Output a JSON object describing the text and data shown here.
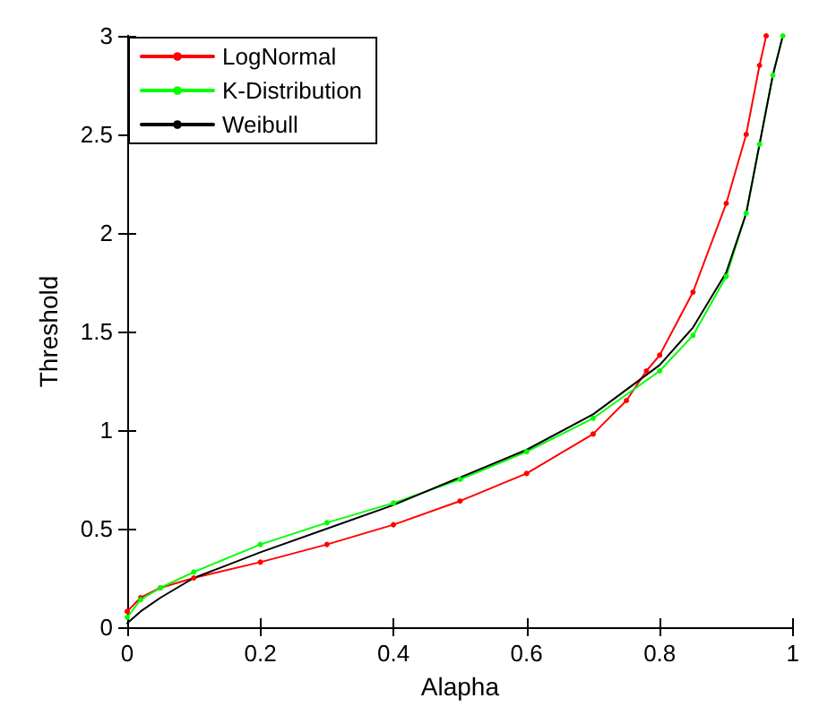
{
  "chart_data": {
    "type": "line",
    "xlabel": "Alapha",
    "ylabel": "Threshold",
    "xlim": [
      0,
      1
    ],
    "xticks": [
      0,
      0.2,
      0.4,
      0.6,
      0.8,
      1
    ],
    "ylim": [
      0,
      3
    ],
    "yticks": [
      0,
      0.5,
      1,
      1.5,
      2,
      2.5,
      3
    ],
    "legend": "top left",
    "grid": false,
    "series": [
      {
        "name": "LogNormal",
        "color": "#ff0000",
        "marker": "circle",
        "x": [
          0,
          0.02,
          0.05,
          0.1,
          0.2,
          0.3,
          0.4,
          0.5,
          0.6,
          0.7,
          0.75,
          0.78,
          0.8,
          0.85,
          0.9,
          0.93,
          0.95,
          0.96
        ],
        "values": [
          0.08,
          0.15,
          0.2,
          0.25,
          0.33,
          0.42,
          0.52,
          0.64,
          0.78,
          0.98,
          1.15,
          1.3,
          1.38,
          1.7,
          2.15,
          2.5,
          2.85,
          3.0
        ]
      },
      {
        "name": "K-Distribution",
        "color": "#00ff00",
        "marker": "circle",
        "x": [
          0,
          0.02,
          0.05,
          0.1,
          0.2,
          0.3,
          0.4,
          0.5,
          0.6,
          0.7,
          0.8,
          0.85,
          0.9,
          0.93,
          0.95,
          0.97,
          0.985
        ],
        "values": [
          0.05,
          0.14,
          0.2,
          0.28,
          0.42,
          0.53,
          0.63,
          0.75,
          0.89,
          1.06,
          1.3,
          1.48,
          1.78,
          2.1,
          2.45,
          2.8,
          3.0
        ]
      },
      {
        "name": "Weibull",
        "color": "#000000",
        "marker": "none",
        "x": [
          0,
          0.02,
          0.05,
          0.1,
          0.2,
          0.3,
          0.4,
          0.5,
          0.6,
          0.7,
          0.8,
          0.85,
          0.9,
          0.93,
          0.95,
          0.97,
          0.985
        ],
        "values": [
          0.02,
          0.08,
          0.15,
          0.25,
          0.38,
          0.5,
          0.62,
          0.76,
          0.9,
          1.08,
          1.33,
          1.52,
          1.8,
          2.1,
          2.45,
          2.8,
          3.0
        ]
      }
    ]
  }
}
